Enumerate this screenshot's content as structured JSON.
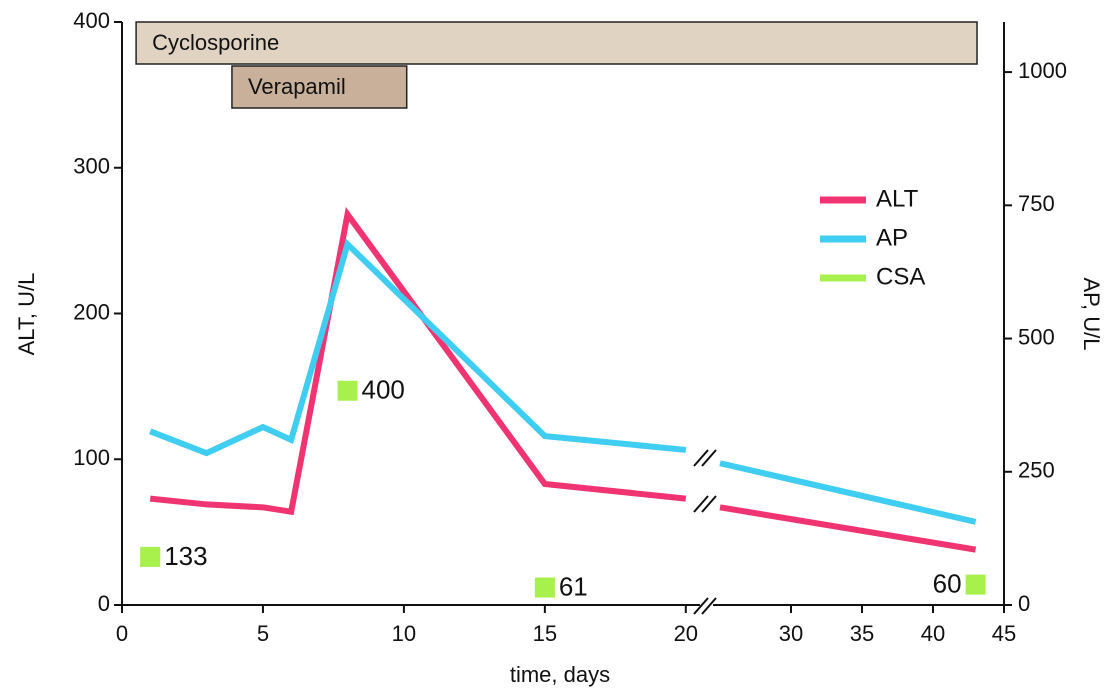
{
  "chart_data": {
    "type": "line",
    "x_label": "time, days",
    "y_label": "ALT, U/L",
    "y2_label": "AP, U/L",
    "x_segments": [
      {
        "xlim": [
          0,
          21
        ],
        "xticks": [
          0,
          5,
          10,
          15,
          20
        ]
      },
      {
        "xlim": [
          25,
          45
        ],
        "xticks": [
          30,
          35,
          40,
          45
        ]
      }
    ],
    "ylim": [
      0,
      400
    ],
    "yticks": [
      0,
      100,
      200,
      300,
      400
    ],
    "y2lim": [
      0,
      1094
    ],
    "y2ticks": [
      0,
      250,
      500,
      750,
      1000
    ],
    "legend": "upper right",
    "series": [
      {
        "name": "ALT",
        "color": "#f03472",
        "x": [
          1,
          3,
          5,
          6,
          8,
          15,
          20,
          null,
          25,
          43
        ],
        "values": [
          73,
          69,
          67,
          64,
          268,
          83,
          73,
          null,
          67,
          38
        ]
      },
      {
        "name": "AP",
        "color": "#3fcdf2",
        "axis": "y2",
        "x": [
          1,
          3,
          5,
          6,
          8,
          15,
          20,
          null,
          25,
          43
        ],
        "values": [
          326,
          285,
          334,
          310,
          677,
          317,
          291,
          null,
          266,
          156
        ]
      },
      {
        "name": "CSA",
        "color": "#a8f04c",
        "type": "marker",
        "x": [
          1,
          8,
          15,
          43
        ],
        "y": [
          33,
          147,
          12,
          14
        ],
        "values": [
          133,
          400,
          61,
          60
        ]
      }
    ],
    "drugs": [
      {
        "name": "Cyclosporine",
        "start": 0.5,
        "end": 43.1,
        "color": "#e0d3c2"
      },
      {
        "name": "Verapamil",
        "start": 3.9,
        "end": 10.1,
        "color": "#c8b09a"
      }
    ]
  }
}
